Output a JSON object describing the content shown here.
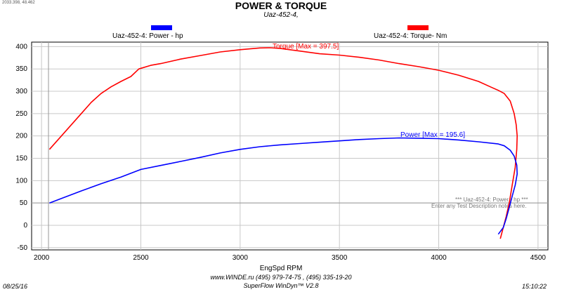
{
  "coord_readout": "2033.398, 48.462",
  "header": {
    "title": "POWER & TORQUE",
    "subtitle": "Uaz-452-4,"
  },
  "legend": {
    "power_label": "Uaz-452-4: Power -  hp",
    "power_color": "#0000ff",
    "torque_label": "Uaz-452-4: Torque-  Nm",
    "torque_color": "#ff0000"
  },
  "annotations": {
    "torque_max": "Torque [Max = 397.5]",
    "power_max": "Power  [Max = 195.6]",
    "note_line1": "*** Uaz-452-4: Power -  hp   ***",
    "note_line2": "Enter any Test Description notes here."
  },
  "chart_data": {
    "type": "line",
    "xlabel": "EngSpd  RPM",
    "ylabel": "",
    "xlim": [
      1950,
      4550
    ],
    "ylim": [
      -55,
      410
    ],
    "x_ticks": [
      2000,
      2500,
      3000,
      3500,
      4000,
      4500
    ],
    "y_ticks": [
      -50,
      0,
      50,
      100,
      150,
      200,
      250,
      300,
      350,
      400
    ],
    "grid": true,
    "reference_lines": {
      "x": 2035,
      "y": 50
    },
    "series": [
      {
        "name": "Uaz-452-4: Torque-  Nm",
        "color": "#ff0000",
        "points": [
          [
            2040,
            170
          ],
          [
            2100,
            200
          ],
          [
            2150,
            225
          ],
          [
            2200,
            250
          ],
          [
            2250,
            275
          ],
          [
            2300,
            295
          ],
          [
            2350,
            310
          ],
          [
            2400,
            322
          ],
          [
            2450,
            333
          ],
          [
            2490,
            350
          ],
          [
            2550,
            358
          ],
          [
            2600,
            362
          ],
          [
            2700,
            372
          ],
          [
            2800,
            380
          ],
          [
            2900,
            388
          ],
          [
            3000,
            393
          ],
          [
            3100,
            397
          ],
          [
            3150,
            397.5
          ],
          [
            3200,
            396
          ],
          [
            3300,
            390
          ],
          [
            3400,
            384
          ],
          [
            3500,
            381
          ],
          [
            3600,
            376
          ],
          [
            3700,
            370
          ],
          [
            3800,
            362
          ],
          [
            3900,
            355
          ],
          [
            4000,
            347
          ],
          [
            4100,
            336
          ],
          [
            4200,
            322
          ],
          [
            4260,
            310
          ],
          [
            4300,
            302
          ],
          [
            4330,
            295
          ],
          [
            4360,
            278
          ],
          [
            4380,
            250
          ],
          [
            4390,
            225
          ],
          [
            4395,
            200
          ],
          [
            4393,
            170
          ],
          [
            4385,
            130
          ],
          [
            4370,
            90
          ],
          [
            4355,
            50
          ],
          [
            4340,
            20
          ],
          [
            4325,
            -5
          ],
          [
            4310,
            -30
          ]
        ]
      },
      {
        "name": "Uaz-452-4: Power -  hp",
        "color": "#0000ff",
        "points": [
          [
            2040,
            50
          ],
          [
            2100,
            60
          ],
          [
            2200,
            77
          ],
          [
            2300,
            93
          ],
          [
            2400,
            108
          ],
          [
            2500,
            125
          ],
          [
            2600,
            134
          ],
          [
            2700,
            143
          ],
          [
            2800,
            152
          ],
          [
            2900,
            162
          ],
          [
            3000,
            170
          ],
          [
            3100,
            176
          ],
          [
            3200,
            180
          ],
          [
            3300,
            183
          ],
          [
            3400,
            186
          ],
          [
            3500,
            189
          ],
          [
            3600,
            192
          ],
          [
            3700,
            194
          ],
          [
            3800,
            195.6
          ],
          [
            3900,
            195
          ],
          [
            4000,
            194
          ],
          [
            4100,
            191
          ],
          [
            4200,
            187
          ],
          [
            4300,
            182
          ],
          [
            4330,
            178
          ],
          [
            4360,
            168
          ],
          [
            4380,
            155
          ],
          [
            4393,
            135
          ],
          [
            4395,
            115
          ],
          [
            4385,
            90
          ],
          [
            4370,
            65
          ],
          [
            4355,
            40
          ],
          [
            4340,
            15
          ],
          [
            4325,
            -5
          ],
          [
            4300,
            -20
          ]
        ]
      }
    ]
  }
}
